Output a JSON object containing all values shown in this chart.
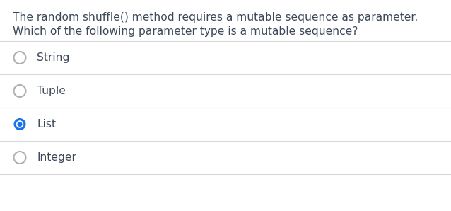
{
  "question_line1": "The random shuffle() method requires a mutable sequence as parameter.",
  "question_line2": "Which of the following parameter type is a mutable sequence?",
  "options": [
    "String",
    "Tuple",
    "List",
    "Integer"
  ],
  "correct_index": 2,
  "bg_color": "#ffffff",
  "text_color": "#3c4858",
  "divider_color": "#d8d8d8",
  "radio_empty_stroke": "#b0b0b0",
  "radio_selected_color": "#1a73e8",
  "question_fontsize": 11.2,
  "option_fontsize": 11.2,
  "figsize": [
    6.38,
    2.98
  ],
  "dpi": 100,
  "top_border_color": "#d8d8d8",
  "bottom_border_color": "#d8d8d8"
}
